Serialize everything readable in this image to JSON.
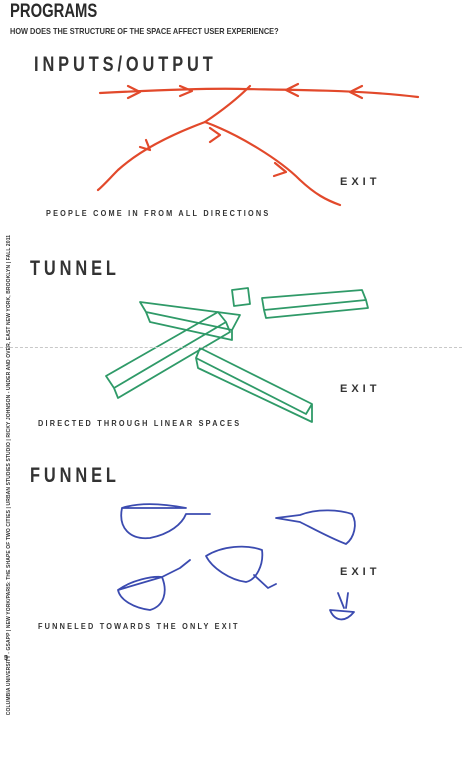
{
  "page": {
    "title": "PROGRAMS",
    "subtitle": "HOW DOES THE STRUCTURE OF THE SPACE AFFECT USER EXPERIENCE?",
    "side_text": "COLUMBIA UNIVERSITY - GSAPP | NEW YORK/PARIS: THE SHAPE OF TWO CITIES | URBAN STUDIES STUDIO | RICKY JOHNSON - UNDER AND OVER, EAST NEW YORK, BROOKLYN | FALL 2011",
    "page_number": "5"
  },
  "sections": {
    "inputs": {
      "heading": "INPUTS/OUTPUT",
      "exit_label": "EXIT",
      "caption": "PEOPLE COME IN FROM ALL DIRECTIONS",
      "sketch_color": "#e2492b"
    },
    "tunnel": {
      "heading": "TUNNEL",
      "exit_label": "EXIT",
      "caption": "DIRECTED THROUGH LINEAR SPACES",
      "sketch_color": "#2f9a68"
    },
    "funnel": {
      "heading": "FUNNEL",
      "exit_label": "EXIT",
      "caption": "FUNNELED TOWARDS THE ONLY EXIT",
      "sketch_color": "#3b4bb0"
    }
  }
}
